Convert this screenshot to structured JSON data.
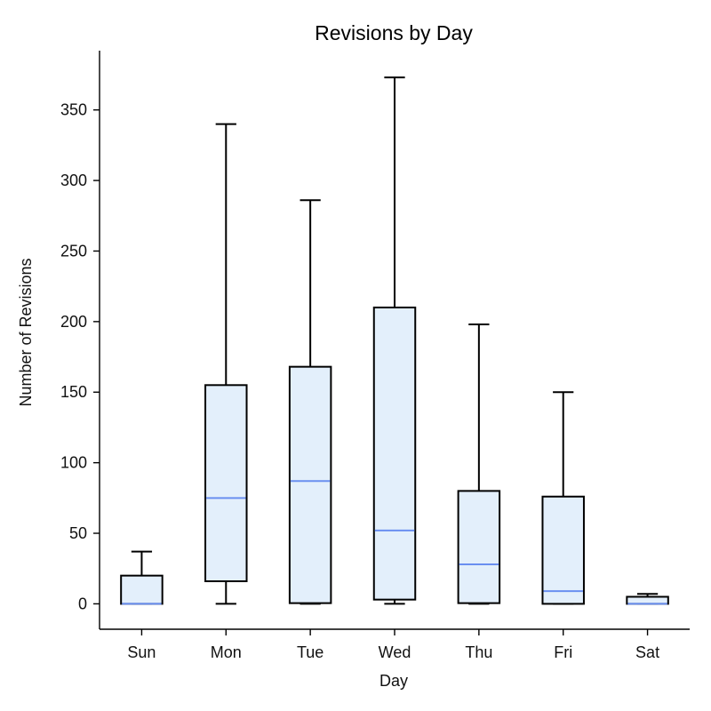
{
  "chart_data": {
    "type": "box",
    "title": "Revisions by Day",
    "xlabel": "Day",
    "ylabel": "Number of Revisions",
    "ylim": [
      -18,
      392
    ],
    "yticks": [
      0,
      50,
      100,
      150,
      200,
      250,
      300,
      350
    ],
    "categories": [
      "Sun",
      "Mon",
      "Tue",
      "Wed",
      "Thu",
      "Fri",
      "Sat"
    ],
    "boxes": [
      {
        "category": "Sun",
        "whisker_low": 0,
        "q1": 0,
        "median": 0,
        "q3": 20,
        "whisker_high": 37
      },
      {
        "category": "Mon",
        "whisker_low": 0,
        "q1": 16,
        "median": 75,
        "q3": 155,
        "whisker_high": 340
      },
      {
        "category": "Tue",
        "whisker_low": 0,
        "q1": 0.5,
        "median": 87,
        "q3": 168,
        "whisker_high": 286
      },
      {
        "category": "Wed",
        "whisker_low": 0,
        "q1": 3,
        "median": 52,
        "q3": 210,
        "whisker_high": 373
      },
      {
        "category": "Thu",
        "whisker_low": 0,
        "q1": 0.5,
        "median": 28,
        "q3": 80,
        "whisker_high": 198
      },
      {
        "category": "Fri",
        "whisker_low": 0,
        "q1": 0,
        "median": 9,
        "q3": 76,
        "whisker_high": 150
      },
      {
        "category": "Sat",
        "whisker_low": 0,
        "q1": 0,
        "median": 0,
        "q3": 5,
        "whisker_high": 7
      }
    ],
    "grid": false,
    "legend": "none",
    "colors": {
      "box_fill": "#e3effb",
      "box_edge": "#000000",
      "median": "#6a8ff0"
    }
  }
}
